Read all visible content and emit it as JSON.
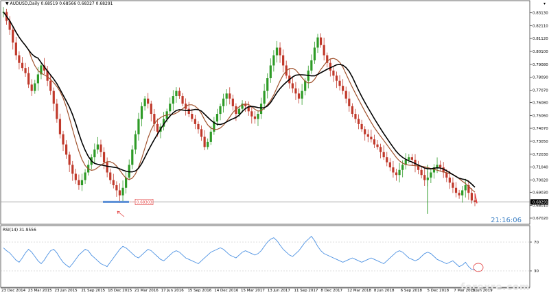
{
  "window": {
    "symbol_title": "AUDUSD,Daily",
    "ohlc_values": "0.68519 0.68566 0.68327 0.68291",
    "clock": "21:16:06",
    "watermark": "forexre.com",
    "rsi_label": "RSI(14) 31.9556",
    "price_label_box": "0.68303"
  },
  "colors": {
    "bull": "#2e9b27",
    "bear": "#c0392b",
    "ma_fast": "#a0522d",
    "ma_slow": "#000000",
    "rsi": "#4a90e2",
    "hline": "#808080",
    "accent_red": "#e23b3b",
    "selection": "#5b8fd6"
  },
  "icons": {
    "dropdown": "triangle-down-icon",
    "arrow": "arrow-pointer-icon"
  },
  "chart_data": {
    "type": "candlestick",
    "price_axis_ticks": [
      "0.83130",
      "0.82110",
      "0.81120",
      "0.80100",
      "0.79080",
      "0.78090",
      "0.77070",
      "0.76080",
      "0.75060",
      "0.74070",
      "0.73050",
      "0.72030",
      "0.71040",
      "0.70020",
      "0.69030",
      "0.68291",
      "0.68010",
      "0.67020"
    ],
    "current_price": "0.68291",
    "rsi_axis_ticks": [
      "70",
      "30"
    ],
    "rsi_current": 31.9556,
    "date_axis_labels": [
      "23 Dec 2014",
      "23 Mar 2015",
      "23 Jun 2015",
      "21 Sep 2015",
      "18 Dec 2015",
      "21 Mar 2016",
      "17 Jun 2016",
      "15 Sep 2016",
      "14 Dec 2016",
      "15 Mar 2017",
      "13 Jun 2017",
      "11 Sep 2017",
      "8 Dec 2017",
      "12 Mar 2018",
      "8 Jun 2018",
      "6 Sep 2018",
      "5 Dec 2018",
      "7 Mar 2019",
      "5 Jun 2019"
    ],
    "close_series": [
      0.832,
      0.825,
      0.818,
      0.808,
      0.798,
      0.792,
      0.788,
      0.784,
      0.775,
      0.77,
      0.776,
      0.783,
      0.79,
      0.786,
      0.778,
      0.77,
      0.76,
      0.748,
      0.736,
      0.728,
      0.72,
      0.712,
      0.705,
      0.7,
      0.696,
      0.7,
      0.706,
      0.712,
      0.718,
      0.724,
      0.728,
      0.722,
      0.714,
      0.706,
      0.7,
      0.696,
      0.692,
      0.688,
      0.694,
      0.702,
      0.712,
      0.724,
      0.736,
      0.748,
      0.758,
      0.764,
      0.76,
      0.752,
      0.744,
      0.738,
      0.742,
      0.748,
      0.754,
      0.76,
      0.766,
      0.77,
      0.766,
      0.76,
      0.756,
      0.752,
      0.748,
      0.744,
      0.74,
      0.734,
      0.726,
      0.73,
      0.738,
      0.746,
      0.752,
      0.758,
      0.764,
      0.768,
      0.764,
      0.758,
      0.752,
      0.756,
      0.76,
      0.758,
      0.754,
      0.75,
      0.748,
      0.752,
      0.76,
      0.77,
      0.78,
      0.79,
      0.798,
      0.804,
      0.798,
      0.79,
      0.782,
      0.776,
      0.772,
      0.768,
      0.764,
      0.77,
      0.778,
      0.786,
      0.794,
      0.804,
      0.812,
      0.806,
      0.798,
      0.792,
      0.786,
      0.782,
      0.778,
      0.774,
      0.77,
      0.764,
      0.758,
      0.752,
      0.748,
      0.744,
      0.74,
      0.736,
      0.734,
      0.732,
      0.728,
      0.726,
      0.722,
      0.718,
      0.714,
      0.71,
      0.706,
      0.704,
      0.708,
      0.712,
      0.716,
      0.718,
      0.716,
      0.712,
      0.708,
      0.704,
      0.7,
      0.702,
      0.706,
      0.71,
      0.712,
      0.71,
      0.706,
      0.702,
      0.698,
      0.694,
      0.69,
      0.688,
      0.692,
      0.696,
      0.69,
      0.684,
      0.6829
    ],
    "rsi_series": [
      62,
      58,
      55,
      50,
      45,
      42,
      48,
      55,
      60,
      56,
      50,
      44,
      40,
      45,
      52,
      58,
      60,
      55,
      48,
      42,
      38,
      35,
      40,
      46,
      52,
      56,
      60,
      58,
      52,
      48,
      44,
      40,
      38,
      36,
      42,
      48,
      54,
      60,
      64,
      62,
      58,
      54,
      50,
      48,
      52,
      56,
      60,
      58,
      54,
      50,
      46,
      44,
      48,
      52,
      56,
      58,
      56,
      52,
      48,
      46,
      44,
      42,
      40,
      44,
      48,
      52,
      56,
      58,
      60,
      62,
      60,
      56,
      52,
      50,
      48,
      52,
      56,
      58,
      56,
      54,
      52,
      54,
      58,
      64,
      70,
      74,
      76,
      72,
      66,
      60,
      56,
      52,
      50,
      54,
      58,
      64,
      70,
      74,
      78,
      72,
      64,
      58,
      54,
      52,
      50,
      48,
      46,
      44,
      42,
      44,
      46,
      48,
      46,
      44,
      42,
      44,
      46,
      48,
      46,
      44,
      42,
      40,
      44,
      48,
      52,
      56,
      58,
      56,
      52,
      48,
      46,
      44,
      46,
      50,
      54,
      56,
      54,
      50,
      46,
      44,
      42,
      40,
      42,
      44,
      40,
      36,
      38,
      42,
      36,
      32,
      31.9556
    ],
    "ma_fast_label": "",
    "ma_slow_label": ""
  }
}
